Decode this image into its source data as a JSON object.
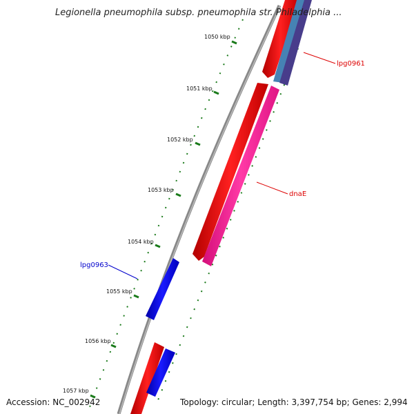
{
  "title": "Legionella pneumophila subsp. pneumophila str. Philadelphia ...",
  "footer": {
    "accession": "Accession: NC_002942",
    "summary": "Topology: circular; Length: 3,397,754 bp; Genes: 2,994"
  },
  "ticks": [
    {
      "label": "1050 kbp"
    },
    {
      "label": "1051 kbp"
    },
    {
      "label": "1052 kbp"
    },
    {
      "label": "1053 kbp"
    },
    {
      "label": "1054 kbp"
    },
    {
      "label": "1055 kbp"
    },
    {
      "label": "1056 kbp"
    },
    {
      "label": "1057 kbp"
    }
  ],
  "genes": [
    {
      "name": "lpg0961",
      "color": "#dd0000"
    },
    {
      "name": "dnaE",
      "color": "#dd0000"
    },
    {
      "name": "lpg0963",
      "color": "#0000cc"
    }
  ],
  "colors": {
    "backbone": "#888888",
    "forward_cds": "#ff0000",
    "reverse_cds": "#0000ff",
    "pink_cds": "#ff1493",
    "steel_cds": "#4682b4",
    "purple_cds": "#483d8b",
    "ticks": "#1a7a1a"
  }
}
